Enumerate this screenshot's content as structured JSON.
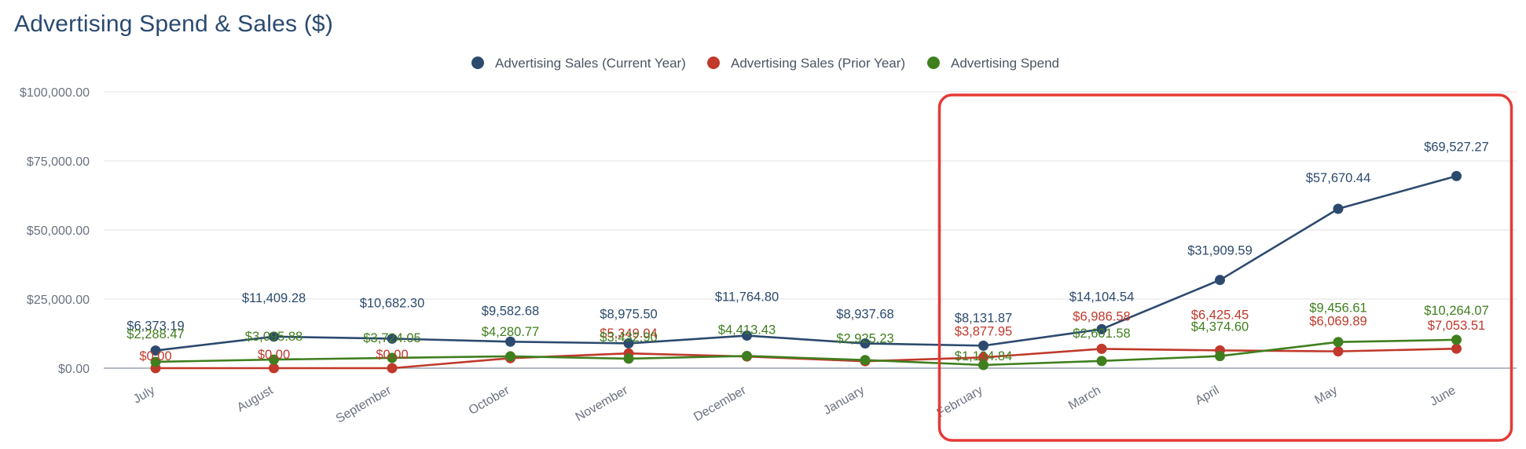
{
  "title": "Advertising Spend & Sales ($)",
  "colors": {
    "current": "#2c4a6e",
    "prior": "#c0392b",
    "spend": "#3f7f1e",
    "grid": "#e0e0e0",
    "axis": "#9ca3af",
    "highlight": "#e53935"
  },
  "chart_data": {
    "type": "line",
    "title": "Advertising Spend & Sales ($)",
    "legend_position": "top-center",
    "grid": true,
    "ylim": [
      0,
      100000
    ],
    "y_ticks": [
      0,
      25000,
      50000,
      75000,
      100000
    ],
    "y_tick_labels": [
      "$0.00",
      "$25,000.00",
      "$50,000.00",
      "$75,000.00",
      "$100,000.00"
    ],
    "categories": [
      "July",
      "August",
      "September",
      "October",
      "November",
      "December",
      "January",
      "February",
      "March",
      "April",
      "May",
      "June"
    ],
    "series": [
      {
        "name": "Advertising Sales (Current Year)",
        "color": "#2c4a6e",
        "values": [
          6373.19,
          11409.28,
          10682.3,
          9582.68,
          8975.5,
          11764.8,
          8937.68,
          8131.87,
          14104.54,
          31909.59,
          57670.44,
          69527.27
        ],
        "labels": [
          "$6,373.19",
          "$11,409.28",
          "$10,682.30",
          "$9,582.68",
          "$8,975.50",
          "$11,764.80",
          "$8,937.68",
          "$8,131.87",
          "$14,104.54",
          "$31,909.59",
          "$57,670.44",
          "$69,527.27"
        ]
      },
      {
        "name": "Advertising Sales (Prior Year)",
        "color": "#c0392b",
        "values": [
          0,
          0,
          0,
          3600,
          5349.04,
          4200,
          2500,
          3877.95,
          6986.58,
          6425.45,
          6069.89,
          7053.51
        ],
        "labels": [
          "$0.00",
          "$0.00",
          "$0.00",
          "",
          "$5,349.04",
          "",
          "",
          "$3,877.95",
          "$6,986.58",
          "$6,425.45",
          "$6,069.89",
          "$7,053.51"
        ]
      },
      {
        "name": "Advertising Spend",
        "color": "#3f7f1e",
        "values": [
          2288.47,
          3095.88,
          3724.05,
          4280.77,
          3432.9,
          4413.43,
          2925.23,
          1134.84,
          2601.58,
          4374.6,
          9456.61,
          10264.07
        ],
        "labels": [
          "$2,288.47",
          "$3,095.88",
          "$3,724.05",
          "$4,280.77",
          "$3,432.90",
          "$4,413.43",
          "$2,925.23",
          "$1,134.84",
          "$2,601.58",
          "$4,374.60",
          "$9,456.61",
          "$10,264.07"
        ]
      }
    ],
    "annotations": [
      {
        "type": "highlight-box",
        "color": "#e53935",
        "range": [
          "February",
          "June"
        ]
      }
    ]
  }
}
